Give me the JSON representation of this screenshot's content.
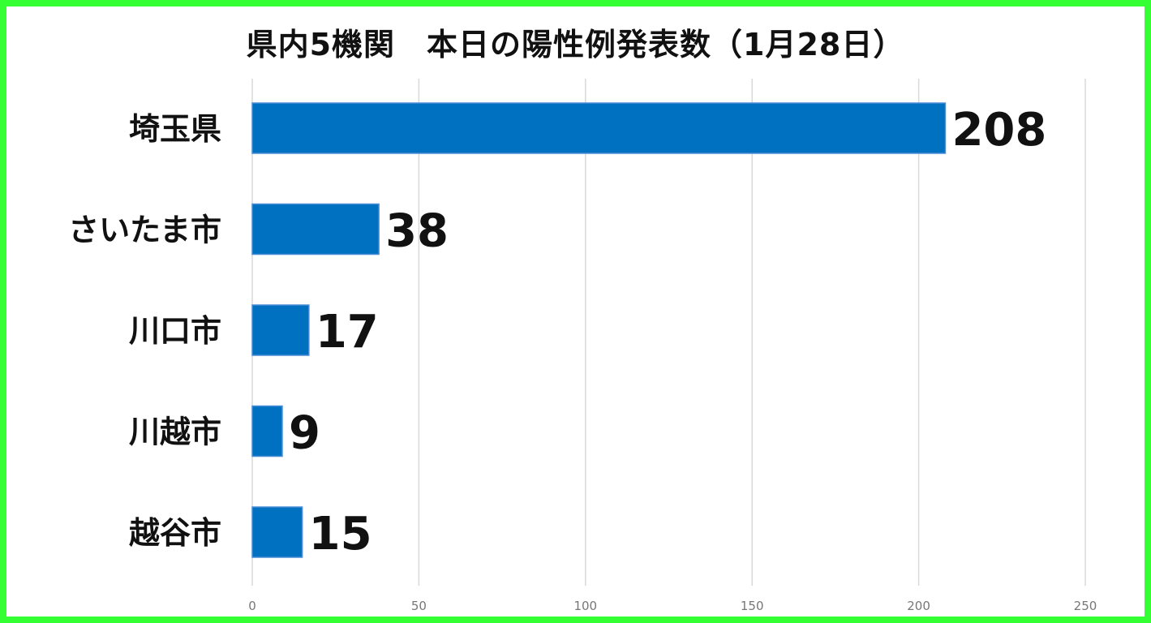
{
  "chart_data": {
    "type": "bar",
    "orientation": "horizontal",
    "title": "県内5機関　本日の陽性例発表数（1月28日）",
    "categories": [
      "埼玉県",
      "さいたま市",
      "川口市",
      "川越市",
      "越谷市"
    ],
    "values": [
      208,
      38,
      17,
      9,
      15
    ],
    "xlim": [
      0,
      250
    ],
    "xticks": [
      0,
      50,
      100,
      150,
      200,
      250
    ],
    "xlabel": "",
    "ylabel": "",
    "grid": "vertical",
    "legend": "none",
    "data_labels": true,
    "colors": {
      "bar": "#0070c0",
      "bar_border": "#4a8ed6",
      "grid": "#d9d9d9",
      "frame": "#33ff33"
    }
  }
}
